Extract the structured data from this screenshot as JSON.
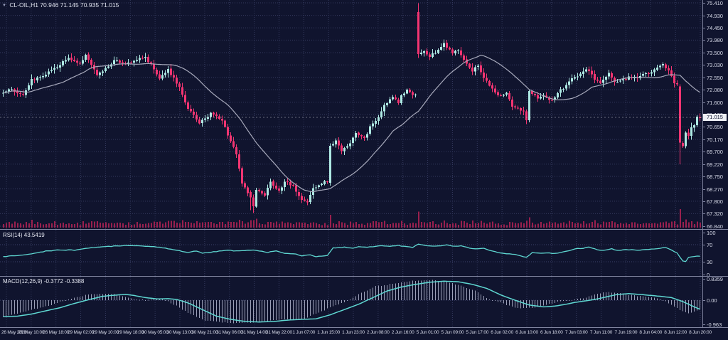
{
  "window": {
    "symbol": "CL-OIL,H1",
    "ohlc_text": "70.946 71.145 70.935 71.015",
    "current_price": "71.015"
  },
  "rsi_panel": {
    "label": "RSI(14)",
    "value": "43.5419"
  },
  "macd_panel": {
    "label": "MACD(12,26,9)",
    "values": "-0.3772 -0.3388"
  },
  "colors": {
    "background": "#10142e",
    "grid": "#343a5e",
    "grid_level": "#3c426a",
    "bull": "#aee9e3",
    "bear": "#f43572",
    "ma": "#a7a9bb",
    "volume": "#aa2152",
    "indicator": "#5fd8d2",
    "histogram": "#c9cde6",
    "axis_text": "#d9dcea",
    "separator": "#80849f",
    "price_tag_bg": "#eef0f5",
    "current_line": "#d8d9e2"
  },
  "chart_data": {
    "type": "candlestick+indicators",
    "symbol": "CL-OIL",
    "timeframe": "H1",
    "last_ohlc": {
      "open": 70.946,
      "high": 71.145,
      "low": 70.935,
      "close": 71.015
    },
    "price_axis_values": [
      75.41,
      74.93,
      74.45,
      73.98,
      73.5,
      73.03,
      72.55,
      72.08,
      71.6,
      71.13,
      70.65,
      70.17,
      69.7,
      69.22,
      68.75,
      68.27,
      67.8,
      67.32,
      66.84
    ],
    "price_range": [
      66.84,
      75.41
    ],
    "current_price": 71.015,
    "price_anchors": [
      [
        0,
        71.95
      ],
      [
        3,
        72.1
      ],
      [
        8,
        71.85
      ],
      [
        11,
        72.45
      ],
      [
        15,
        72.6
      ],
      [
        19,
        72.9
      ],
      [
        24,
        73.28
      ],
      [
        28,
        73.05
      ],
      [
        30,
        73.42
      ],
      [
        34,
        72.65
      ],
      [
        38,
        72.95
      ],
      [
        40,
        73.2
      ],
      [
        44,
        73.05
      ],
      [
        49,
        73.28
      ],
      [
        51,
        73.32
      ],
      [
        54,
        72.9
      ],
      [
        56,
        72.5
      ],
      [
        59,
        72.85
      ],
      [
        63,
        72.15
      ],
      [
        66,
        71.35
      ],
      [
        70,
        70.8
      ],
      [
        74,
        71.15
      ],
      [
        78,
        70.9
      ],
      [
        80,
        70.35
      ],
      [
        83,
        69.6
      ],
      [
        85,
        68.45
      ],
      [
        87,
        68.15
      ],
      [
        88,
        67.95
      ],
      [
        89,
        67.62
      ],
      [
        90,
        68.2
      ],
      [
        93,
        68.05
      ],
      [
        95,
        68.5
      ],
      [
        98,
        68.2
      ],
      [
        100,
        68.55
      ],
      [
        103,
        68.4
      ],
      [
        105,
        67.95
      ],
      [
        108,
        67.75
      ],
      [
        110,
        68.3
      ],
      [
        114,
        68.55
      ],
      [
        115,
        68.5
      ],
      [
        116,
        69.95
      ],
      [
        118,
        70.1
      ],
      [
        120,
        69.75
      ],
      [
        123,
        70.05
      ],
      [
        125,
        70.4
      ],
      [
        128,
        70.2
      ],
      [
        130,
        70.65
      ],
      [
        133,
        71.0
      ],
      [
        135,
        71.45
      ],
      [
        138,
        71.8
      ],
      [
        140,
        71.55
      ],
      [
        141,
        71.9
      ],
      [
        143,
        72.05
      ],
      [
        145,
        71.85
      ],
      [
        146,
        71.88
      ],
      [
        147,
        73.45
      ],
      [
        149,
        73.55
      ],
      [
        151,
        73.35
      ],
      [
        154,
        73.6
      ],
      [
        156,
        73.85
      ],
      [
        159,
        73.5
      ],
      [
        161,
        73.6
      ],
      [
        164,
        73.1
      ],
      [
        166,
        72.8
      ],
      [
        168,
        73.0
      ],
      [
        170,
        72.55
      ],
      [
        173,
        72.1
      ],
      [
        175,
        71.85
      ],
      [
        178,
        71.95
      ],
      [
        180,
        71.45
      ],
      [
        183,
        71.3
      ],
      [
        184,
        71.25
      ],
      [
        185,
        70.92
      ],
      [
        186,
        72.05
      ],
      [
        189,
        71.75
      ],
      [
        191,
        71.85
      ],
      [
        194,
        71.65
      ],
      [
        196,
        71.95
      ],
      [
        199,
        72.25
      ],
      [
        201,
        72.5
      ],
      [
        204,
        72.7
      ],
      [
        206,
        72.9
      ],
      [
        209,
        72.5
      ],
      [
        211,
        72.3
      ],
      [
        214,
        72.7
      ],
      [
        216,
        72.4
      ],
      [
        219,
        72.45
      ],
      [
        221,
        72.55
      ],
      [
        224,
        72.5
      ],
      [
        226,
        72.65
      ],
      [
        229,
        72.75
      ],
      [
        231,
        72.9
      ],
      [
        233,
        73.05
      ],
      [
        235,
        72.8
      ],
      [
        237,
        72.35
      ],
      [
        238,
        72.25
      ],
      [
        239,
        70.0
      ],
      [
        240,
        69.95
      ],
      [
        241,
        70.45
      ],
      [
        242,
        70.3
      ],
      [
        243,
        70.6
      ],
      [
        244,
        70.7
      ],
      [
        245,
        71.0
      ]
    ],
    "candle_overrides": {
      "87": [
        68.15,
        68.22,
        67.45,
        67.95
      ],
      "88": [
        67.95,
        68.05,
        67.35,
        67.6
      ],
      "115": [
        68.5,
        70.02,
        68.4,
        69.92
      ],
      "146": [
        75.05,
        75.4,
        73.3,
        73.45
      ],
      "184": [
        71.25,
        71.32,
        70.76,
        70.9
      ],
      "185": [
        70.9,
        72.1,
        70.82,
        72.02
      ],
      "238": [
        72.2,
        72.28,
        69.22,
        70.05
      ]
    },
    "rsi": {
      "period": 14,
      "current": 43.5419,
      "range": [
        0,
        100
      ],
      "levels": [
        70,
        30
      ],
      "axis_labels": [
        {
          "text": "100",
          "v": 100
        },
        {
          "text": "70",
          "v": 70
        },
        {
          "text": "30",
          "v": 30
        },
        {
          "text": "0",
          "v": 0
        }
      ],
      "anchors": [
        [
          0,
          42
        ],
        [
          5,
          45
        ],
        [
          10,
          48
        ],
        [
          15,
          55
        ],
        [
          20,
          58
        ],
        [
          25,
          57
        ],
        [
          30,
          62
        ],
        [
          35,
          65
        ],
        [
          40,
          67
        ],
        [
          45,
          68
        ],
        [
          50,
          66
        ],
        [
          55,
          64
        ],
        [
          60,
          58
        ],
        [
          65,
          52
        ],
        [
          68,
          55
        ],
        [
          70,
          50
        ],
        [
          73,
          52
        ],
        [
          78,
          57
        ],
        [
          83,
          55
        ],
        [
          88,
          58
        ],
        [
          93,
          52
        ],
        [
          96,
          55
        ],
        [
          99,
          50
        ],
        [
          103,
          48
        ],
        [
          105,
          44
        ],
        [
          108,
          46
        ],
        [
          110,
          42
        ],
        [
          114,
          45
        ],
        [
          116,
          62
        ],
        [
          120,
          64
        ],
        [
          123,
          62
        ],
        [
          125,
          66
        ],
        [
          128,
          64
        ],
        [
          130,
          65
        ],
        [
          133,
          68
        ],
        [
          136,
          66
        ],
        [
          139,
          68
        ],
        [
          141,
          66
        ],
        [
          144,
          64
        ],
        [
          146,
          72
        ],
        [
          149,
          68
        ],
        [
          151,
          66
        ],
        [
          154,
          67
        ],
        [
          156,
          70
        ],
        [
          159,
          66
        ],
        [
          161,
          67
        ],
        [
          164,
          62
        ],
        [
          166,
          60
        ],
        [
          169,
          62
        ],
        [
          171,
          56
        ],
        [
          174,
          52
        ],
        [
          176,
          50
        ],
        [
          179,
          48
        ],
        [
          181,
          46
        ],
        [
          184,
          40
        ],
        [
          186,
          52
        ],
        [
          189,
          50
        ],
        [
          191,
          51
        ],
        [
          194,
          49
        ],
        [
          196,
          52
        ],
        [
          199,
          56
        ],
        [
          201,
          60
        ],
        [
          204,
          62
        ],
        [
          206,
          64
        ],
        [
          209,
          58
        ],
        [
          211,
          56
        ],
        [
          214,
          60
        ],
        [
          216,
          57
        ],
        [
          219,
          58
        ],
        [
          221,
          58
        ],
        [
          224,
          57
        ],
        [
          226,
          59
        ],
        [
          229,
          60
        ],
        [
          231,
          62
        ],
        [
          233,
          64
        ],
        [
          235,
          58
        ],
        [
          237,
          50
        ],
        [
          239,
          32
        ],
        [
          240,
          30
        ],
        [
          241,
          40
        ],
        [
          243,
          42
        ],
        [
          245,
          43.5
        ]
      ]
    },
    "macd": {
      "fast": 12,
      "slow": 26,
      "signal_period": 9,
      "current_macd": -0.3772,
      "current_signal": -0.3388,
      "scale_max": 0.8359,
      "scale_min": -0.963,
      "axis_labels": [
        {
          "text": "0.8359",
          "v": 0.8359
        },
        {
          "text": "0.00",
          "v": 0
        },
        {
          "text": "-0.963",
          "v": -0.963
        }
      ],
      "signal_anchors": [
        [
          0,
          -0.62
        ],
        [
          5,
          -0.6
        ],
        [
          10,
          -0.52
        ],
        [
          15,
          -0.4
        ],
        [
          20,
          -0.28
        ],
        [
          25,
          -0.12
        ],
        [
          30,
          0.02
        ],
        [
          35,
          0.15
        ],
        [
          40,
          0.2
        ],
        [
          43,
          0.22
        ],
        [
          46,
          0.18
        ],
        [
          50,
          0.1
        ],
        [
          54,
          0.05
        ],
        [
          58,
          0.06
        ],
        [
          61,
          0.03
        ],
        [
          65,
          -0.1
        ],
        [
          70,
          -0.35
        ],
        [
          75,
          -0.6
        ],
        [
          80,
          -0.72
        ],
        [
          85,
          -0.8
        ],
        [
          90,
          -0.82
        ],
        [
          95,
          -0.8
        ],
        [
          100,
          -0.75
        ],
        [
          105,
          -0.72
        ],
        [
          110,
          -0.7
        ],
        [
          115,
          -0.55
        ],
        [
          120,
          -0.35
        ],
        [
          125,
          -0.15
        ],
        [
          130,
          0.1
        ],
        [
          135,
          0.35
        ],
        [
          140,
          0.5
        ],
        [
          145,
          0.6
        ],
        [
          150,
          0.68
        ],
        [
          155,
          0.72
        ],
        [
          160,
          0.7
        ],
        [
          165,
          0.6
        ],
        [
          170,
          0.45
        ],
        [
          175,
          0.2
        ],
        [
          180,
          0.0
        ],
        [
          185,
          -0.18
        ],
        [
          190,
          -0.25
        ],
        [
          194,
          -0.22
        ],
        [
          198,
          -0.15
        ],
        [
          201,
          -0.08
        ],
        [
          205,
          -0.02
        ],
        [
          209,
          0.05
        ],
        [
          213,
          0.15
        ],
        [
          216,
          0.22
        ],
        [
          220,
          0.25
        ],
        [
          224,
          0.22
        ],
        [
          228,
          0.18
        ],
        [
          231,
          0.15
        ],
        [
          235,
          0.1
        ],
        [
          239,
          -0.05
        ],
        [
          242,
          -0.2
        ],
        [
          245,
          -0.34
        ]
      ]
    },
    "time_labels": [
      "26 May 2023",
      "26 May 10:00",
      "26 May 18:00",
      "29 May 02:00",
      "29 May 10:00",
      "29 May 18:00",
      "30 May 05:00",
      "30 May 13:00",
      "30 May 21:00",
      "31 May 06:00",
      "31 May 14:00",
      "31 May 22:00",
      "1 Jun 07:00",
      "1 Jun 15:00",
      "1 Jun 23:00",
      "2 Jun 08:00",
      "2 Jun 16:00",
      "5 Jun 01:00",
      "5 Jun 09:00",
      "5 Jun 17:00",
      "6 Jun 02:00",
      "6 Jun 10:00",
      "6 Jun 18:00",
      "7 Jun 03:00",
      "7 Jun 11:00",
      "7 Jun 19:00",
      "8 Jun 04:00",
      "8 Jun 12:00",
      "8 Jun 20:00"
    ]
  }
}
